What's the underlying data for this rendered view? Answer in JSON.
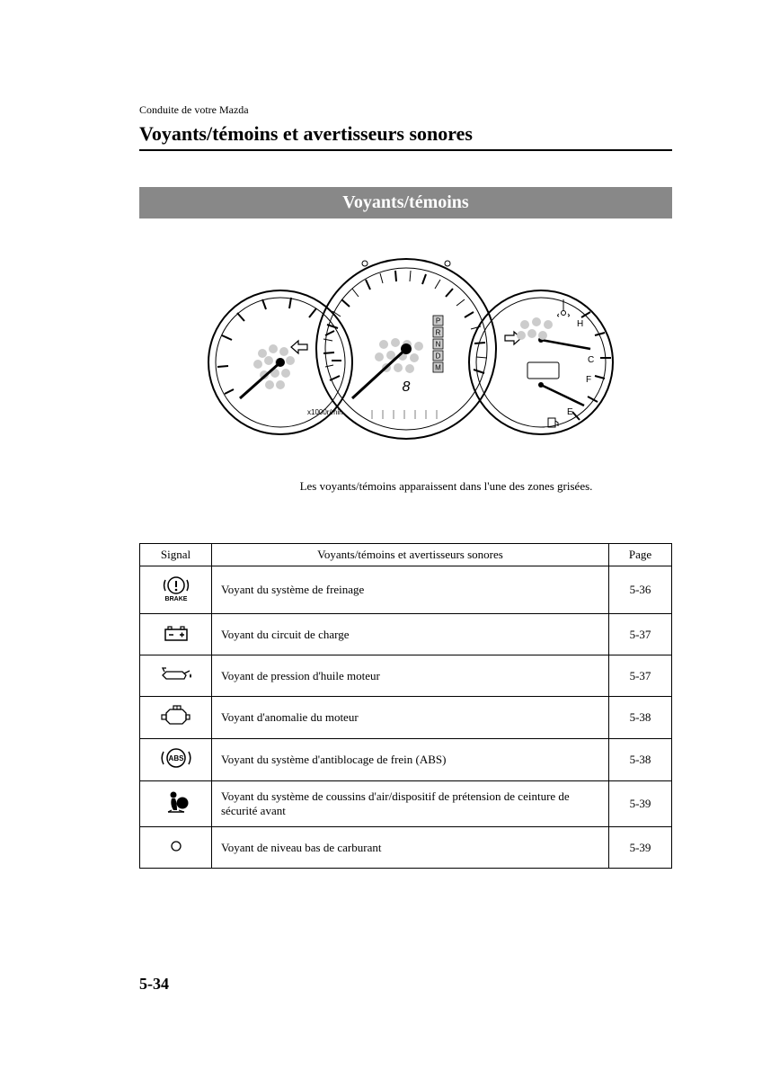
{
  "breadcrumb": "Conduite de votre Mazda",
  "section_title": "Voyants/témoins et avertisseurs sonores",
  "banner": "Voyants/témoins",
  "caption": "Les voyants/témoins apparaissent dans l'une des zones grisées.",
  "table": {
    "headers": {
      "signal": "Signal",
      "desc": "Voyants/témoins et avertisseurs sonores",
      "page": "Page"
    },
    "rows": [
      {
        "icon": "brake",
        "desc": "Voyant du système de freinage",
        "page": "5-36"
      },
      {
        "icon": "battery",
        "desc": "Voyant du circuit de charge",
        "page": "5-37"
      },
      {
        "icon": "oil",
        "desc": "Voyant de pression d'huile moteur",
        "page": "5-37"
      },
      {
        "icon": "engine",
        "desc": "Voyant d'anomalie du moteur",
        "page": "5-38"
      },
      {
        "icon": "abs",
        "desc": "Voyant du système d'antiblocage de frein (ABS)",
        "page": "5-38"
      },
      {
        "icon": "airbag",
        "desc": "Voyant du système de coussins d'air/dispositif de prétension de ceinture de sécurité avant",
        "page": "5-39"
      },
      {
        "icon": "fuel",
        "desc": "Voyant de niveau bas de carburant",
        "page": "5-39"
      }
    ]
  },
  "page_number": "5-34",
  "cluster": {
    "tach_label": "x1000r/min",
    "gear_letters": [
      "P",
      "R",
      "N",
      "D",
      "M"
    ],
    "temp_labels": {
      "hot": "H",
      "cold": "C"
    },
    "fuel_labels": {
      "full": "F",
      "empty": "E"
    }
  },
  "colors": {
    "banner_bg": "#888888",
    "banner_fg": "#ffffff",
    "gray_zone": "#cccccc"
  }
}
